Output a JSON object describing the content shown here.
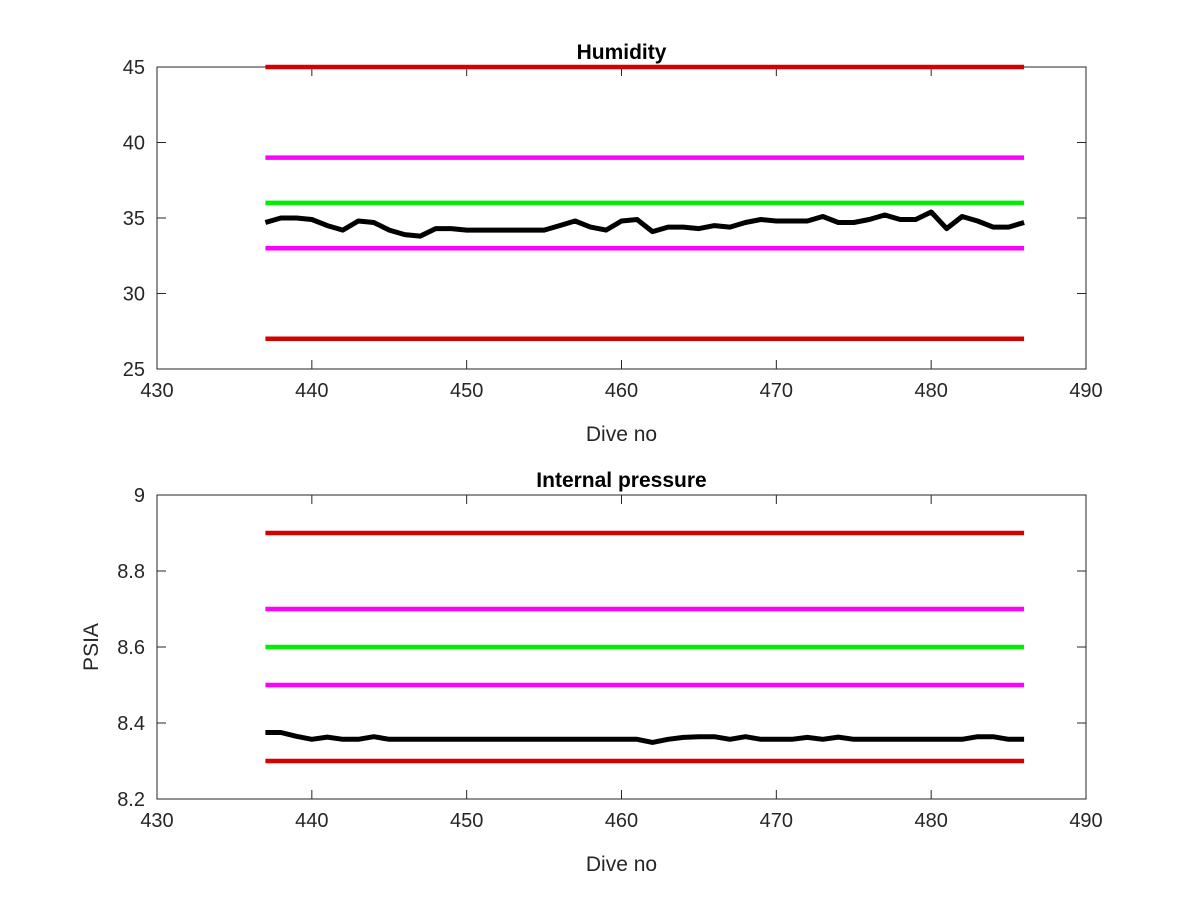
{
  "chart_data": [
    {
      "type": "line",
      "title": "Humidity",
      "xlabel": "Dive no",
      "ylabel": "",
      "xlim": [
        430,
        490
      ],
      "ylim": [
        25,
        45
      ],
      "xticks": [
        430,
        440,
        450,
        460,
        470,
        480,
        490
      ],
      "yticks": [
        25,
        30,
        35,
        40,
        45
      ],
      "grid": false,
      "series": [
        {
          "color": "#d40000",
          "x": [
            437,
            486
          ],
          "y": [
            45,
            45
          ]
        },
        {
          "color": "#ff00ff",
          "x": [
            437,
            486
          ],
          "y": [
            39,
            39
          ]
        },
        {
          "color": "#00ee00",
          "x": [
            437,
            486
          ],
          "y": [
            36,
            36
          ]
        },
        {
          "color": "#ff00ff",
          "x": [
            437,
            486
          ],
          "y": [
            33,
            33
          ]
        },
        {
          "color": "#d40000",
          "x": [
            437,
            486
          ],
          "y": [
            27,
            27
          ]
        },
        {
          "color": "#000000",
          "x": [
            437,
            438,
            439,
            440,
            441,
            442,
            443,
            444,
            445,
            446,
            447,
            448,
            449,
            450,
            451,
            452,
            453,
            454,
            455,
            456,
            457,
            458,
            459,
            460,
            461,
            462,
            463,
            464,
            465,
            466,
            467,
            468,
            469,
            470,
            471,
            472,
            473,
            474,
            475,
            476,
            477,
            478,
            479,
            480,
            481,
            482,
            483,
            484,
            485,
            486
          ],
          "y": [
            34.7,
            35.0,
            35.0,
            34.9,
            34.5,
            34.2,
            34.8,
            34.7,
            34.2,
            33.9,
            33.8,
            34.3,
            34.3,
            34.2,
            34.2,
            34.2,
            34.2,
            34.2,
            34.2,
            34.5,
            34.8,
            34.4,
            34.2,
            34.8,
            34.9,
            34.1,
            34.4,
            34.4,
            34.3,
            34.5,
            34.4,
            34.7,
            34.9,
            34.8,
            34.8,
            34.8,
            35.1,
            34.7,
            34.7,
            34.9,
            35.2,
            34.9,
            34.9,
            35.4,
            34.3,
            35.1,
            34.8,
            34.4,
            34.4,
            34.7
          ]
        }
      ]
    },
    {
      "type": "line",
      "title": "Internal pressure",
      "xlabel": "Dive no",
      "ylabel": "PSIA",
      "xlim": [
        430,
        490
      ],
      "ylim": [
        8.2,
        9
      ],
      "xticks": [
        430,
        440,
        450,
        460,
        470,
        480,
        490
      ],
      "yticks": [
        8.2,
        8.4,
        8.6,
        8.8,
        9
      ],
      "grid": false,
      "series": [
        {
          "color": "#d40000",
          "x": [
            437,
            486
          ],
          "y": [
            8.9,
            8.9
          ]
        },
        {
          "color": "#ff00ff",
          "x": [
            437,
            486
          ],
          "y": [
            8.7,
            8.7
          ]
        },
        {
          "color": "#00ee00",
          "x": [
            437,
            486
          ],
          "y": [
            8.6,
            8.6
          ]
        },
        {
          "color": "#ff00ff",
          "x": [
            437,
            486
          ],
          "y": [
            8.5,
            8.5
          ]
        },
        {
          "color": "#d40000",
          "x": [
            437,
            486
          ],
          "y": [
            8.3,
            8.3
          ]
        },
        {
          "color": "#000000",
          "x": [
            437,
            438,
            439,
            440,
            441,
            442,
            443,
            444,
            445,
            446,
            447,
            448,
            449,
            450,
            451,
            452,
            453,
            454,
            455,
            456,
            457,
            458,
            459,
            460,
            461,
            462,
            463,
            464,
            465,
            466,
            467,
            468,
            469,
            470,
            471,
            472,
            473,
            474,
            475,
            476,
            477,
            478,
            479,
            480,
            481,
            482,
            483,
            484,
            485,
            486
          ],
          "y": [
            8.375,
            8.375,
            8.365,
            8.357,
            8.363,
            8.357,
            8.357,
            8.364,
            8.357,
            8.357,
            8.357,
            8.357,
            8.357,
            8.357,
            8.357,
            8.357,
            8.357,
            8.357,
            8.357,
            8.357,
            8.357,
            8.357,
            8.357,
            8.357,
            8.357,
            8.349,
            8.357,
            8.362,
            8.364,
            8.364,
            8.357,
            8.364,
            8.357,
            8.357,
            8.357,
            8.362,
            8.357,
            8.363,
            8.357,
            8.357,
            8.357,
            8.357,
            8.357,
            8.357,
            8.357,
            8.357,
            8.364,
            8.364,
            8.357,
            8.357
          ]
        }
      ]
    }
  ]
}
